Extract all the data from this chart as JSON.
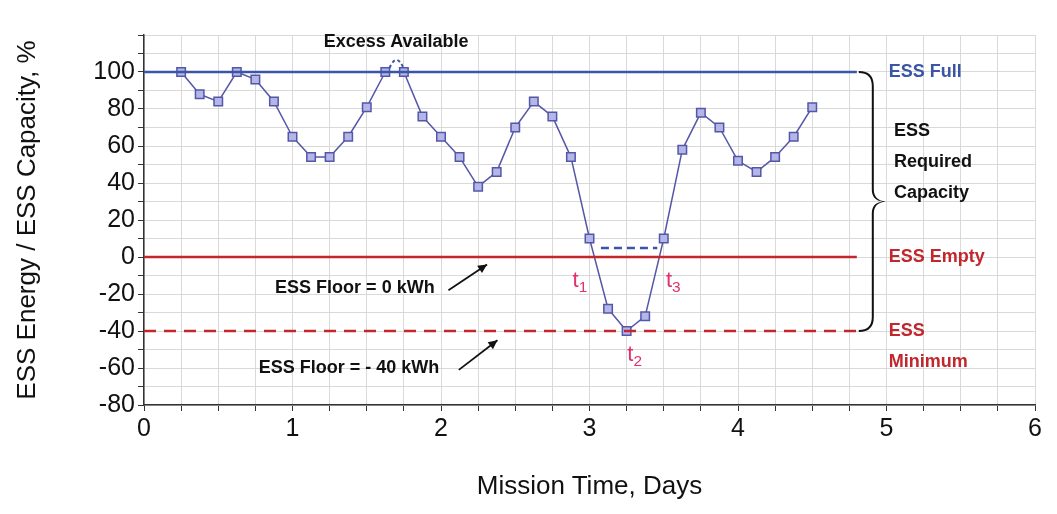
{
  "chart_data": {
    "type": "line",
    "xlabel": "Mission Time, Days",
    "ylabel": "ESS Energy / ESS Capacity, %",
    "x": [
      0.25,
      0.375,
      0.5,
      0.625,
      0.75,
      0.875,
      1.0,
      1.125,
      1.25,
      1.375,
      1.5,
      1.625,
      1.75,
      1.875,
      2.0,
      2.125,
      2.25,
      2.375,
      2.5,
      2.625,
      2.75,
      2.875,
      3.0,
      3.125,
      3.25,
      3.375,
      3.5,
      3.625,
      3.75,
      3.875,
      4.0,
      4.125,
      4.25,
      4.375,
      4.5
    ],
    "series": [
      {
        "color": "#5457a8",
        "values": [
          100,
          88,
          84,
          100,
          96,
          84,
          65,
          54,
          54,
          65,
          81,
          100,
          100,
          76,
          65,
          54,
          38,
          46,
          70,
          84,
          76,
          54,
          10,
          -28,
          -40,
          -32,
          10,
          58,
          78,
          70,
          52,
          46,
          54,
          65,
          81
        ]
      }
    ],
    "xlim": [
      0,
      6
    ],
    "xticks": [
      0,
      {
        "value": 0.25,
        "label": null
      },
      {
        "value": 0.5,
        "label": null
      },
      {
        "value": 0.75,
        "label": null
      },
      1,
      {
        "value": 1.25,
        "label": null
      },
      {
        "value": 1.5,
        "label": null
      },
      {
        "value": 1.75,
        "label": null
      },
      2,
      {
        "value": 2.25,
        "label": null
      },
      {
        "value": 2.5,
        "label": null
      },
      {
        "value": 2.75,
        "label": null
      },
      3,
      {
        "value": 3.25,
        "label": null
      },
      {
        "value": 3.5,
        "label": null
      },
      {
        "value": 3.75,
        "label": null
      },
      4,
      {
        "value": 4.25,
        "label": null
      },
      {
        "value": 4.5,
        "label": null
      },
      {
        "value": 4.75,
        "label": null
      },
      5,
      {
        "value": 5.25,
        "label": null
      },
      {
        "value": 5.5,
        "label": null
      },
      {
        "value": 5.75,
        "label": null
      },
      6
    ],
    "ylim": [
      -80,
      120
    ],
    "yticks": [
      -80,
      {
        "value": -70,
        "label": null
      },
      -60,
      {
        "value": -50,
        "label": null
      },
      -40,
      {
        "value": -30,
        "label": null
      },
      -20,
      {
        "value": -10,
        "label": null
      },
      0,
      {
        "value": 10,
        "label": null
      },
      20,
      {
        "value": 30,
        "label": null
      },
      40,
      {
        "value": 50,
        "label": null
      },
      60,
      {
        "value": 70,
        "label": null
      },
      80,
      {
        "value": 90,
        "label": null
      },
      100,
      {
        "value": 110,
        "label": null
      },
      {
        "value": 120,
        "label": null
      }
    ],
    "grid": true,
    "legend": false,
    "marker": "square",
    "line_style": "solid",
    "ref_lines": [
      {
        "axis": "y",
        "value": 100,
        "label": "ESS Full",
        "color": "#3b55a6",
        "line_style": "solid"
      },
      {
        "axis": "y",
        "value": 0,
        "label": "ESS Empty",
        "color": "#c1272d",
        "line_style": "solid"
      },
      {
        "axis": "y",
        "value": -40,
        "label": "ESS Minimum",
        "color": "#c1272d",
        "line_style": "dashed"
      }
    ],
    "annotations": [
      {
        "text": "Excess Available",
        "x": 1.7,
        "y": 100
      },
      "ESS Floor = 0 kWh",
      "ESS Floor = - 40 kWh",
      "ESS Required Capacity",
      {
        "text": "t$_{1}$",
        "x": 3.03,
        "y": 0
      },
      {
        "text": "t$_{2}$",
        "x": 3.25,
        "y": -40
      },
      {
        "text": "t$_{3}$",
        "x": 3.47,
        "y": 0
      }
    ]
  }
}
